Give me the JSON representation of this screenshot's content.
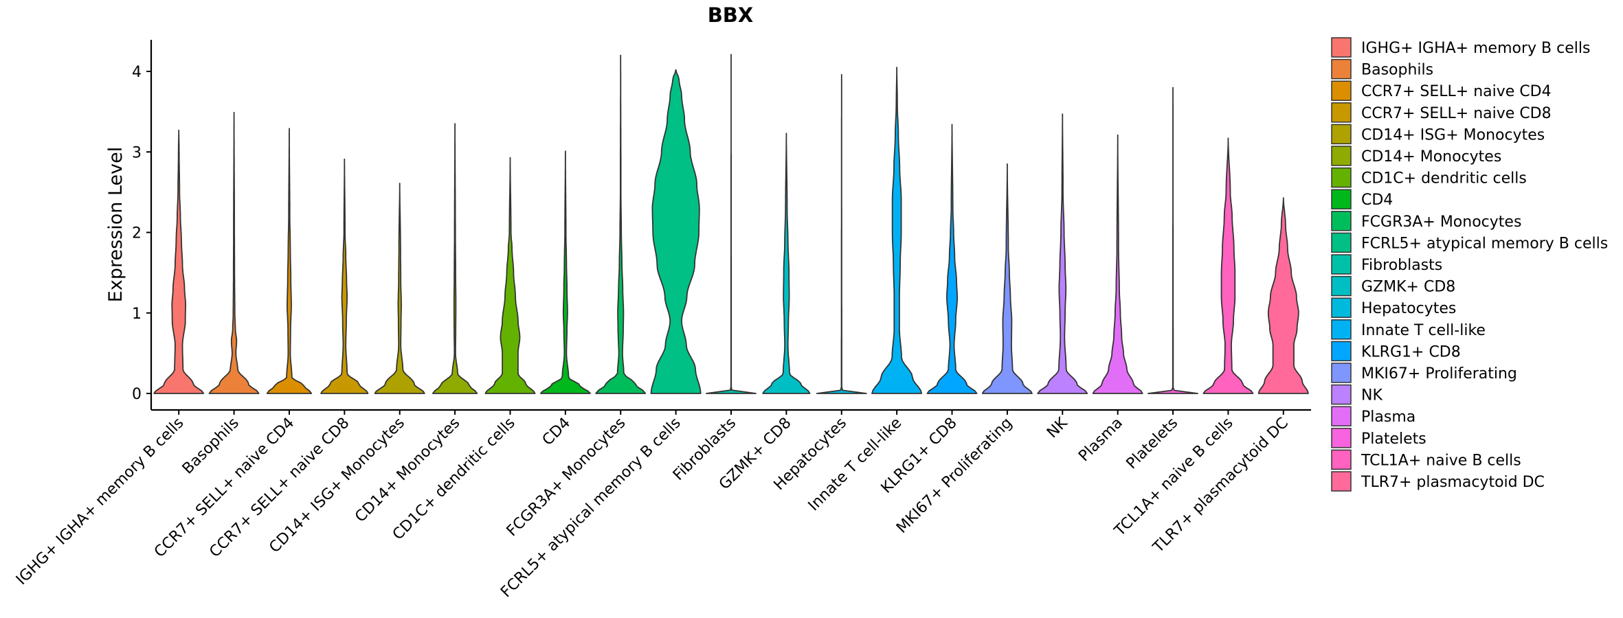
{
  "chart_data": {
    "type": "violin",
    "title": "BBX",
    "xlabel": "",
    "ylabel": "Expression Level",
    "ylim": [
      -0.2,
      4.4
    ],
    "yticks": [
      0,
      1,
      2,
      3,
      4
    ],
    "grid": false,
    "legend_position": "right",
    "categories": [
      " IGHG+ IGHA+ memory B cells",
      "Basophils",
      "CCR7+ SELL+ naive CD4",
      "CCR7+ SELL+ naive CD8",
      "CD14+ ISG+ Monocytes",
      "CD14+ Monocytes",
      "CD1C+ dendritic cells",
      "CD4",
      "FCGR3A+ Monocytes",
      "FCRL5+ atypical memory B cells",
      "Fibroblasts",
      "GZMK+ CD8",
      "Hepatocytes",
      "Innate T cell-like",
      "KLRG1+ CD8",
      "MKI67+ Proliferating",
      "NK",
      "Plasma",
      "Platelets",
      "TCL1A+ naive B cells",
      "TLR7+ plasmacytoid DC"
    ],
    "colors": [
      "#F8766D",
      "#EC8239",
      "#DB8E00",
      "#C79800",
      "#AEA200",
      "#8FAA00",
      "#64B200",
      "#00B81B",
      "#00BD5C",
      "#00C085",
      "#00C1A7",
      "#00BFC4",
      "#00BADE",
      "#00B2F3",
      "#00A6FF",
      "#7F96FF",
      "#BC81FF",
      "#E26EF7",
      "#F863DF",
      "#FF62BF",
      "#FF6A9A"
    ],
    "series": [
      {
        "max": 3.27,
        "profile": [
          [
            0,
            0.95
          ],
          [
            0.12,
            0.55
          ],
          [
            0.3,
            0.16
          ],
          [
            0.6,
            0.14
          ],
          [
            0.9,
            0.25
          ],
          [
            1.1,
            0.26
          ],
          [
            1.3,
            0.22
          ],
          [
            1.6,
            0.14
          ],
          [
            1.9,
            0.1
          ],
          [
            2.2,
            0.06
          ],
          [
            2.5,
            0.03
          ],
          [
            3.0,
            0.012
          ],
          [
            3.27,
            0
          ]
        ]
      },
      {
        "max": 3.49,
        "profile": [
          [
            0,
            0.95
          ],
          [
            0.12,
            0.55
          ],
          [
            0.3,
            0.14
          ],
          [
            0.5,
            0.07
          ],
          [
            0.65,
            0.1
          ],
          [
            0.8,
            0.05
          ],
          [
            1.0,
            0.03
          ],
          [
            1.5,
            0.02
          ],
          [
            2.0,
            0.015
          ],
          [
            3.49,
            0
          ]
        ]
      },
      {
        "max": 3.29,
        "profile": [
          [
            0,
            0.85
          ],
          [
            0.1,
            0.55
          ],
          [
            0.2,
            0.1
          ],
          [
            0.5,
            0.04
          ],
          [
            0.8,
            0.05
          ],
          [
            1.1,
            0.08
          ],
          [
            1.4,
            0.06
          ],
          [
            1.8,
            0.04
          ],
          [
            2.2,
            0.02
          ],
          [
            3.29,
            0
          ]
        ]
      },
      {
        "max": 2.91,
        "profile": [
          [
            0,
            0.9
          ],
          [
            0.12,
            0.55
          ],
          [
            0.25,
            0.1
          ],
          [
            0.6,
            0.05
          ],
          [
            0.9,
            0.07
          ],
          [
            1.2,
            0.1
          ],
          [
            1.4,
            0.08
          ],
          [
            1.7,
            0.05
          ],
          [
            2.0,
            0.02
          ],
          [
            2.91,
            0
          ]
        ]
      },
      {
        "max": 2.61,
        "profile": [
          [
            0,
            0.95
          ],
          [
            0.12,
            0.55
          ],
          [
            0.3,
            0.12
          ],
          [
            0.6,
            0.04
          ],
          [
            0.9,
            0.05
          ],
          [
            1.1,
            0.06
          ],
          [
            1.4,
            0.04
          ],
          [
            1.8,
            0.03
          ],
          [
            2.61,
            0
          ]
        ]
      },
      {
        "max": 3.35,
        "profile": [
          [
            0,
            0.85
          ],
          [
            0.1,
            0.55
          ],
          [
            0.25,
            0.1
          ],
          [
            0.5,
            0.02
          ],
          [
            0.8,
            0.03
          ],
          [
            1.1,
            0.035
          ],
          [
            1.5,
            0.025
          ],
          [
            2.0,
            0.015
          ],
          [
            3.35,
            0
          ]
        ]
      },
      {
        "max": 2.93,
        "profile": [
          [
            0,
            0.95
          ],
          [
            0.12,
            0.6
          ],
          [
            0.25,
            0.3
          ],
          [
            0.5,
            0.3
          ],
          [
            0.7,
            0.37
          ],
          [
            0.9,
            0.3
          ],
          [
            1.2,
            0.2
          ],
          [
            1.5,
            0.13
          ],
          [
            1.8,
            0.07
          ],
          [
            2.0,
            0.03
          ],
          [
            2.93,
            0
          ]
        ]
      },
      {
        "max": 3.01,
        "profile": [
          [
            0,
            0.95
          ],
          [
            0.1,
            0.55
          ],
          [
            0.2,
            0.12
          ],
          [
            0.5,
            0.04
          ],
          [
            0.8,
            0.06
          ],
          [
            1.0,
            0.08
          ],
          [
            1.3,
            0.06
          ],
          [
            1.6,
            0.04
          ],
          [
            2.0,
            0.02
          ],
          [
            3.01,
            0
          ]
        ]
      },
      {
        "max": 4.2,
        "profile": [
          [
            0,
            0.95
          ],
          [
            0.12,
            0.55
          ],
          [
            0.25,
            0.12
          ],
          [
            0.5,
            0.07
          ],
          [
            0.8,
            0.1
          ],
          [
            1.0,
            0.11
          ],
          [
            1.3,
            0.08
          ],
          [
            1.6,
            0.05
          ],
          [
            2.0,
            0.025
          ],
          [
            2.5,
            0.01
          ],
          [
            4.2,
            0
          ]
        ]
      },
      {
        "max": 4.02,
        "profile": [
          [
            0,
            0.95
          ],
          [
            0.3,
            0.75
          ],
          [
            0.6,
            0.4
          ],
          [
            0.9,
            0.22
          ],
          [
            1.2,
            0.42
          ],
          [
            1.6,
            0.72
          ],
          [
            2.0,
            0.88
          ],
          [
            2.3,
            0.9
          ],
          [
            2.6,
            0.8
          ],
          [
            3.0,
            0.55
          ],
          [
            3.4,
            0.33
          ],
          [
            3.7,
            0.22
          ],
          [
            3.9,
            0.12
          ],
          [
            4.02,
            0
          ]
        ]
      },
      {
        "max": 4.21,
        "profile": [
          [
            0,
            0.95
          ],
          [
            0.02,
            0.12
          ],
          [
            0.05,
            0.006
          ],
          [
            4.21,
            0
          ]
        ]
      },
      {
        "max": 3.23,
        "profile": [
          [
            0,
            0.9
          ],
          [
            0.12,
            0.55
          ],
          [
            0.25,
            0.12
          ],
          [
            0.6,
            0.06
          ],
          [
            0.9,
            0.08
          ],
          [
            1.2,
            0.11
          ],
          [
            1.5,
            0.1
          ],
          [
            1.9,
            0.06
          ],
          [
            2.3,
            0.03
          ],
          [
            3.23,
            0
          ]
        ]
      },
      {
        "max": 3.96,
        "profile": [
          [
            0,
            0.95
          ],
          [
            0.02,
            0.12
          ],
          [
            0.05,
            0.006
          ],
          [
            3.96,
            0
          ]
        ]
      },
      {
        "max": 4.05,
        "profile": [
          [
            0,
            0.95
          ],
          [
            0.2,
            0.6
          ],
          [
            0.45,
            0.18
          ],
          [
            0.8,
            0.1
          ],
          [
            1.2,
            0.1
          ],
          [
            1.6,
            0.13
          ],
          [
            2.0,
            0.17
          ],
          [
            2.4,
            0.17
          ],
          [
            2.8,
            0.11
          ],
          [
            3.2,
            0.06
          ],
          [
            3.6,
            0.02
          ],
          [
            4.05,
            0
          ]
        ]
      },
      {
        "max": 3.34,
        "profile": [
          [
            0,
            0.95
          ],
          [
            0.12,
            0.55
          ],
          [
            0.3,
            0.14
          ],
          [
            0.6,
            0.08
          ],
          [
            0.9,
            0.14
          ],
          [
            1.2,
            0.2
          ],
          [
            1.4,
            0.17
          ],
          [
            1.7,
            0.1
          ],
          [
            2.0,
            0.06
          ],
          [
            2.3,
            0.03
          ],
          [
            3.34,
            0
          ]
        ]
      },
      {
        "max": 2.85,
        "profile": [
          [
            0,
            0.95
          ],
          [
            0.12,
            0.6
          ],
          [
            0.3,
            0.2
          ],
          [
            0.6,
            0.16
          ],
          [
            0.9,
            0.17
          ],
          [
            1.2,
            0.12
          ],
          [
            1.5,
            0.08
          ],
          [
            1.8,
            0.04
          ],
          [
            2.85,
            0
          ]
        ]
      },
      {
        "max": 3.47,
        "profile": [
          [
            0,
            0.95
          ],
          [
            0.12,
            0.55
          ],
          [
            0.3,
            0.14
          ],
          [
            0.7,
            0.08
          ],
          [
            1.0,
            0.1
          ],
          [
            1.3,
            0.13
          ],
          [
            1.6,
            0.1
          ],
          [
            2.0,
            0.06
          ],
          [
            2.5,
            0.02
          ],
          [
            3.47,
            0
          ]
        ]
      },
      {
        "max": 3.21,
        "profile": [
          [
            0,
            0.95
          ],
          [
            0.12,
            0.6
          ],
          [
            0.3,
            0.35
          ],
          [
            0.5,
            0.22
          ],
          [
            0.7,
            0.15
          ],
          [
            1.0,
            0.1
          ],
          [
            1.3,
            0.06
          ],
          [
            1.8,
            0.03
          ],
          [
            3.21,
            0
          ]
        ]
      },
      {
        "max": 3.8,
        "profile": [
          [
            0,
            0.95
          ],
          [
            0.02,
            0.12
          ],
          [
            0.05,
            0.006
          ],
          [
            3.8,
            0
          ]
        ]
      },
      {
        "max": 3.17,
        "profile": [
          [
            0,
            0.95
          ],
          [
            0.12,
            0.55
          ],
          [
            0.3,
            0.14
          ],
          [
            0.6,
            0.12
          ],
          [
            0.9,
            0.2
          ],
          [
            1.2,
            0.26
          ],
          [
            1.5,
            0.26
          ],
          [
            1.8,
            0.22
          ],
          [
            2.2,
            0.15
          ],
          [
            2.5,
            0.08
          ],
          [
            3.17,
            0
          ]
        ]
      },
      {
        "max": 2.43,
        "profile": [
          [
            0,
            0.95
          ],
          [
            0.15,
            0.72
          ],
          [
            0.35,
            0.4
          ],
          [
            0.6,
            0.4
          ],
          [
            0.8,
            0.52
          ],
          [
            1.0,
            0.58
          ],
          [
            1.2,
            0.5
          ],
          [
            1.5,
            0.3
          ],
          [
            1.8,
            0.16
          ],
          [
            2.1,
            0.08
          ],
          [
            2.43,
            0
          ]
        ]
      }
    ]
  }
}
